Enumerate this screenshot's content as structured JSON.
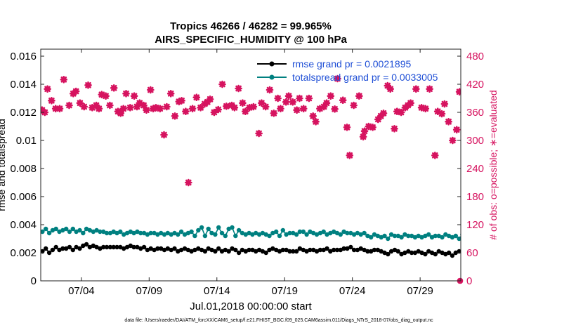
{
  "chart_data": {
    "type": "line",
    "title_line1": "Tropics 46266 / 46282 = 99.965%",
    "title_line2": "AIRS_SPECIFIC_HUMIDITY @ 100 hPa",
    "xlabel": "Jul.01,2018 00:00:00 start",
    "ylabel_left": "rmse and totalspread",
    "ylabel_right": "# of obs: o=possible; ∗=evaluated",
    "footer": "data file: /Users/raeder/DAI/ATM_forcXX/CAM6_setup/f.e21.FHIST_BGC.f09_025.CAM6assim.011/Diags_NTrS_2018-07/obs_diag_output.nc",
    "x_range_days": [
      1,
      32
    ],
    "x_ticks": [
      {
        "day": 4,
        "label": "07/04"
      },
      {
        "day": 9,
        "label": "07/09"
      },
      {
        "day": 14,
        "label": "07/14"
      },
      {
        "day": 19,
        "label": "07/19"
      },
      {
        "day": 24,
        "label": "07/24"
      },
      {
        "day": 29,
        "label": "07/29"
      }
    ],
    "y_left_range": [
      0,
      0.0165
    ],
    "y_left_ticks": [
      "0",
      "0.002",
      "0.004",
      "0.006",
      "0.008",
      "0.01",
      "0.012",
      "0.014",
      "0.016"
    ],
    "y_left_tick_values": [
      0,
      0.002,
      0.004,
      0.006,
      0.008,
      0.01,
      0.012,
      0.014,
      0.016
    ],
    "y_right_range": [
      0,
      495
    ],
    "y_right_ticks": [
      "0",
      "60",
      "120",
      "180",
      "240",
      "300",
      "360",
      "420",
      "480"
    ],
    "y_right_tick_values": [
      0,
      60,
      120,
      180,
      240,
      300,
      360,
      420,
      480
    ],
    "series": [
      {
        "name": "rmse grand pr = 0.0021895",
        "color": "#000000",
        "axis": "left",
        "marker": "dot",
        "start_day": 1.125,
        "step_days": 0.25,
        "values": [
          0.0021,
          0.0023,
          0.002,
          0.0022,
          0.0024,
          0.0022,
          0.0023,
          0.0023,
          0.0024,
          0.0022,
          0.0024,
          0.0023,
          0.0025,
          0.0026,
          0.0024,
          0.0025,
          0.0024,
          0.0023,
          0.0024,
          0.0024,
          0.0024,
          0.0024,
          0.0024,
          0.0024,
          0.0023,
          0.0024,
          0.0025,
          0.0024,
          0.0024,
          0.0023,
          0.0024,
          0.0022,
          0.0023,
          0.0022,
          0.0023,
          0.0023,
          0.0022,
          0.0023,
          0.0022,
          0.0023,
          0.0021,
          0.0022,
          0.0023,
          0.0022,
          0.0021,
          0.0022,
          0.0023,
          0.0022,
          0.0021,
          0.0023,
          0.0022,
          0.0021,
          0.0023,
          0.0021,
          0.0022,
          0.0021,
          0.0023,
          0.0022,
          0.002,
          0.0022,
          0.0021,
          0.0022,
          0.0022,
          0.0021,
          0.0022,
          0.0021,
          0.002,
          0.0022,
          0.0023,
          0.0022,
          0.0021,
          0.0022,
          0.0022,
          0.0021,
          0.0021,
          0.0021,
          0.0023,
          0.0022,
          0.0021,
          0.0022,
          0.0022,
          0.0021,
          0.0022,
          0.0022,
          0.0023,
          0.0021,
          0.0022,
          0.0022,
          0.0022,
          0.0023,
          0.0023,
          0.0024,
          0.0022,
          0.0022,
          0.0023,
          0.0022,
          0.0021,
          0.0021,
          0.0022,
          0.0022,
          0.0021,
          0.002,
          0.0019,
          0.0021,
          0.0022,
          0.0021,
          0.0019,
          0.002,
          0.0021,
          0.002,
          0.002,
          0.0021,
          0.002,
          0.0019,
          0.0021,
          0.002,
          0.0019,
          0.0021,
          0.002,
          0.0019,
          0.002,
          0.0018,
          0.002,
          0.0021,
          0.002
        ]
      },
      {
        "name": "totalspread grand pr = 0.0033005",
        "color": "#008080",
        "axis": "left",
        "marker": "dot",
        "start_day": 1.125,
        "step_days": 0.25,
        "values": [
          0.0035,
          0.0037,
          0.0034,
          0.0036,
          0.0037,
          0.0035,
          0.0036,
          0.0037,
          0.0035,
          0.0037,
          0.0035,
          0.0036,
          0.0034,
          0.0037,
          0.0036,
          0.0035,
          0.0036,
          0.0035,
          0.0035,
          0.0034,
          0.0034,
          0.0035,
          0.0034,
          0.0035,
          0.0033,
          0.0034,
          0.0035,
          0.0034,
          0.0035,
          0.0034,
          0.0034,
          0.0033,
          0.0034,
          0.0034,
          0.0033,
          0.0034,
          0.0033,
          0.0034,
          0.0033,
          0.0034,
          0.0033,
          0.0035,
          0.0033,
          0.0034,
          0.0035,
          0.0032,
          0.0036,
          0.0038,
          0.0032,
          0.0037,
          0.0034,
          0.0033,
          0.0038,
          0.0034,
          0.0032,
          0.0037,
          0.0038,
          0.0032,
          0.0036,
          0.0034,
          0.0033,
          0.0034,
          0.0033,
          0.0034,
          0.0033,
          0.0034,
          0.0033,
          0.0032,
          0.0034,
          0.0035,
          0.0032,
          0.0036,
          0.0033,
          0.0034,
          0.0034,
          0.0033,
          0.0035,
          0.0035,
          0.0033,
          0.0035,
          0.0034,
          0.0033,
          0.0034,
          0.0035,
          0.0033,
          0.0034,
          0.0035,
          0.0034,
          0.0033,
          0.0035,
          0.0034,
          0.0034,
          0.0033,
          0.0034,
          0.0033,
          0.0034,
          0.0032,
          0.0031,
          0.0033,
          0.0032,
          0.0031,
          0.0032,
          0.003,
          0.0033,
          0.0032,
          0.0032,
          0.0031,
          0.0033,
          0.0032,
          0.0032,
          0.0031,
          0.0032,
          0.0031,
          0.0032,
          0.0033,
          0.0031,
          0.0032,
          0.0032,
          0.0031,
          0.0033,
          0.0032,
          0.0031,
          0.0032,
          0.003,
          0.0033,
          0.0033
        ]
      },
      {
        "name": "# of obs evaluated",
        "color": "#d6135f",
        "axis": "right",
        "marker": "star",
        "points": [
          [
            1.1,
            365
          ],
          [
            1.3,
            360
          ],
          [
            1.5,
            410
          ],
          [
            1.8,
            385
          ],
          [
            2.1,
            368
          ],
          [
            2.4,
            368
          ],
          [
            2.7,
            430
          ],
          [
            3.1,
            375
          ],
          [
            3.4,
            400
          ],
          [
            3.6,
            405
          ],
          [
            3.9,
            380
          ],
          [
            4.2,
            372
          ],
          [
            4.5,
            418
          ],
          [
            4.8,
            370
          ],
          [
            5.1,
            375
          ],
          [
            5.3,
            368
          ],
          [
            5.5,
            398
          ],
          [
            5.8,
            395
          ],
          [
            6.1,
            375
          ],
          [
            6.4,
            412
          ],
          [
            6.7,
            362
          ],
          [
            6.9,
            358
          ],
          [
            7.1,
            368
          ],
          [
            7.3,
            400
          ],
          [
            7.6,
            370
          ],
          [
            7.9,
            395
          ],
          [
            8.1,
            372
          ],
          [
            8.3,
            380
          ],
          [
            8.6,
            375
          ],
          [
            8.8,
            365
          ],
          [
            9.1,
            408
          ],
          [
            9.3,
            368
          ],
          [
            9.5,
            370
          ],
          [
            9.8,
            368
          ],
          [
            10.1,
            312
          ],
          [
            10.3,
            372
          ],
          [
            10.6,
            400
          ],
          [
            10.9,
            352
          ],
          [
            11.2,
            383
          ],
          [
            11.4,
            385
          ],
          [
            11.7,
            362
          ],
          [
            11.9,
            210
          ],
          [
            12.2,
            368
          ],
          [
            12.5,
            392
          ],
          [
            12.8,
            370
          ],
          [
            13.1,
            378
          ],
          [
            13.3,
            382
          ],
          [
            13.5,
            388
          ],
          [
            13.8,
            360
          ],
          [
            14.1,
            366
          ],
          [
            14.4,
            420
          ],
          [
            14.7,
            373
          ],
          [
            15.1,
            375
          ],
          [
            15.3,
            370
          ],
          [
            15.6,
            411
          ],
          [
            15.9,
            380
          ],
          [
            16.1,
            362
          ],
          [
            16.4,
            370
          ],
          [
            16.7,
            372
          ],
          [
            17.1,
            315
          ],
          [
            17.3,
            380
          ],
          [
            17.6,
            372
          ],
          [
            17.9,
            408
          ],
          [
            18.2,
            358
          ],
          [
            18.5,
            390
          ],
          [
            18.7,
            368
          ],
          [
            19.1,
            382
          ],
          [
            19.3,
            395
          ],
          [
            19.6,
            382
          ],
          [
            19.9,
            365
          ],
          [
            20.1,
            390
          ],
          [
            20.4,
            368
          ],
          [
            20.8,
            390
          ],
          [
            21.1,
            352
          ],
          [
            21.3,
            340
          ],
          [
            21.6,
            368
          ],
          [
            21.9,
            372
          ],
          [
            22.1,
            380
          ],
          [
            22.4,
            395
          ],
          [
            22.7,
            367
          ],
          [
            22.9,
            432
          ],
          [
            23.3,
            386
          ],
          [
            23.6,
            328
          ],
          [
            23.8,
            268
          ],
          [
            24.1,
            375
          ],
          [
            24.5,
            395
          ],
          [
            24.8,
            308
          ],
          [
            24.9,
            320
          ],
          [
            25.2,
            330
          ],
          [
            25.5,
            328
          ],
          [
            25.9,
            345
          ],
          [
            26.1,
            352
          ],
          [
            26.3,
            358
          ],
          [
            26.6,
            417
          ],
          [
            26.8,
            410
          ],
          [
            27.1,
            325
          ],
          [
            27.3,
            362
          ],
          [
            27.6,
            360
          ],
          [
            27.9,
            370
          ],
          [
            28.1,
            375
          ],
          [
            28.3,
            380
          ],
          [
            28.7,
            410
          ],
          [
            29.1,
            370
          ],
          [
            29.4,
            368
          ],
          [
            29.7,
            410
          ],
          [
            30.1,
            268
          ],
          [
            30.3,
            362
          ],
          [
            30.6,
            357
          ],
          [
            30.8,
            378
          ],
          [
            31.1,
            340
          ],
          [
            31.4,
            300
          ],
          [
            31.7,
            323
          ],
          [
            31.9,
            404
          ]
        ]
      },
      {
        "name": "# of obs possible",
        "color": "#d6135f",
        "axis": "right",
        "marker": "circle",
        "points": [
          [
            31.95,
            0
          ]
        ]
      }
    ]
  }
}
